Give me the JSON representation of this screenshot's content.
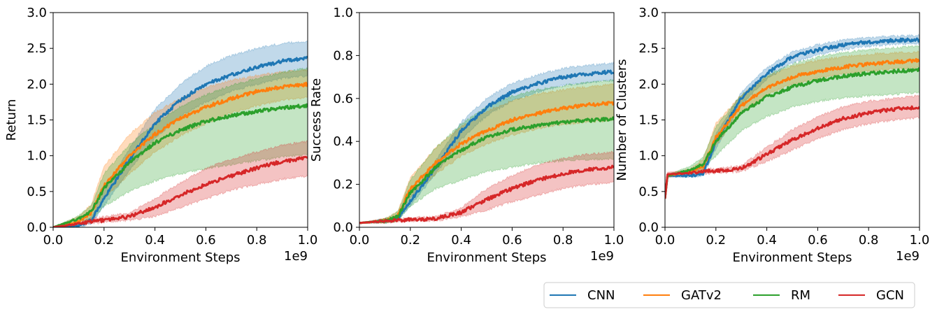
{
  "chart_data": [
    {
      "type": "line",
      "xlabel": "Environment Steps",
      "ylabel": "Return",
      "x_offset_label": "1e9",
      "xlim": [
        0,
        1.0
      ],
      "ylim": [
        0,
        3.0
      ],
      "xticks": [
        0.0,
        0.2,
        0.4,
        0.6,
        0.8,
        1.0
      ],
      "xtick_labels": [
        "0.0",
        "0.2",
        "0.4",
        "0.6",
        "0.8",
        "1.0"
      ],
      "yticks": [
        0,
        0.5,
        1.0,
        1.5,
        2.0,
        2.5,
        3.0
      ],
      "ytick_labels": [
        "0.0",
        "0.5",
        "1.0",
        "1.5",
        "2.0",
        "2.5",
        "3.0"
      ],
      "x": [
        0,
        0.1,
        0.15,
        0.2,
        0.3,
        0.4,
        0.5,
        0.6,
        0.7,
        0.8,
        0.9,
        1.0
      ],
      "series": [
        {
          "name": "CNN",
          "values": [
            0,
            0.02,
            0.1,
            0.4,
            0.95,
            1.45,
            1.78,
            2.0,
            2.13,
            2.24,
            2.32,
            2.36
          ],
          "lower": [
            0,
            0.0,
            0.05,
            0.3,
            0.8,
            1.25,
            1.55,
            1.75,
            1.9,
            2.0,
            2.08,
            2.12
          ],
          "upper": [
            0,
            0.04,
            0.15,
            0.5,
            1.1,
            1.65,
            2.0,
            2.25,
            2.4,
            2.5,
            2.57,
            2.6
          ]
        },
        {
          "name": "GATv2",
          "values": [
            0,
            0.08,
            0.2,
            0.58,
            1.0,
            1.3,
            1.52,
            1.68,
            1.8,
            1.9,
            1.96,
            2.0
          ],
          "lower": [
            0,
            0.04,
            0.1,
            0.4,
            0.75,
            1.05,
            1.28,
            1.45,
            1.6,
            1.7,
            1.78,
            1.82
          ],
          "upper": [
            0,
            0.15,
            0.32,
            0.85,
            1.3,
            1.6,
            1.8,
            1.95,
            2.05,
            2.12,
            2.17,
            2.2
          ]
        },
        {
          "name": "RM",
          "values": [
            0,
            0.12,
            0.22,
            0.55,
            0.9,
            1.18,
            1.36,
            1.48,
            1.56,
            1.62,
            1.67,
            1.7
          ],
          "lower": [
            0,
            0.08,
            0.1,
            0.3,
            0.5,
            0.65,
            0.75,
            0.82,
            0.88,
            0.93,
            0.98,
            1.02
          ],
          "upper": [
            0,
            0.16,
            0.3,
            0.75,
            1.15,
            1.45,
            1.68,
            1.85,
            1.98,
            2.08,
            2.16,
            2.22
          ]
        },
        {
          "name": "GCN",
          "values": [
            0,
            0.05,
            0.08,
            0.1,
            0.15,
            0.28,
            0.45,
            0.6,
            0.72,
            0.83,
            0.92,
            0.97
          ],
          "lower": [
            0,
            0.03,
            0.05,
            0.07,
            0.1,
            0.15,
            0.28,
            0.4,
            0.52,
            0.6,
            0.67,
            0.72
          ],
          "upper": [
            0,
            0.07,
            0.12,
            0.15,
            0.2,
            0.4,
            0.62,
            0.82,
            0.95,
            1.05,
            1.15,
            1.2
          ]
        }
      ]
    },
    {
      "type": "line",
      "xlabel": "Environment Steps",
      "ylabel": "Success Rate",
      "x_offset_label": "1e9",
      "xlim": [
        0,
        1.0
      ],
      "ylim": [
        0,
        1.0
      ],
      "xticks": [
        0.0,
        0.2,
        0.4,
        0.6,
        0.8,
        1.0
      ],
      "xtick_labels": [
        "0.0",
        "0.2",
        "0.4",
        "0.6",
        "0.8",
        "1.0"
      ],
      "yticks": [
        0,
        0.2,
        0.4,
        0.6,
        0.8,
        1.0
      ],
      "ytick_labels": [
        "0.0",
        "0.2",
        "0.4",
        "0.6",
        "0.8",
        "1.0"
      ],
      "x": [
        0,
        0.1,
        0.15,
        0.2,
        0.3,
        0.4,
        0.5,
        0.6,
        0.7,
        0.8,
        0.9,
        1.0
      ],
      "series": [
        {
          "name": "CNN",
          "values": [
            0.02,
            0.03,
            0.04,
            0.12,
            0.28,
            0.45,
            0.56,
            0.63,
            0.67,
            0.7,
            0.715,
            0.725
          ],
          "lower": [
            0.02,
            0.02,
            0.03,
            0.1,
            0.25,
            0.41,
            0.52,
            0.59,
            0.63,
            0.66,
            0.675,
            0.685
          ],
          "upper": [
            0.02,
            0.04,
            0.05,
            0.14,
            0.31,
            0.49,
            0.6,
            0.67,
            0.71,
            0.74,
            0.755,
            0.765
          ]
        },
        {
          "name": "GATv2",
          "values": [
            0.02,
            0.03,
            0.05,
            0.18,
            0.3,
            0.39,
            0.45,
            0.5,
            0.53,
            0.555,
            0.57,
            0.58
          ],
          "lower": [
            0.02,
            0.02,
            0.03,
            0.14,
            0.25,
            0.33,
            0.39,
            0.43,
            0.46,
            0.48,
            0.49,
            0.5
          ],
          "upper": [
            0.02,
            0.04,
            0.07,
            0.23,
            0.37,
            0.47,
            0.54,
            0.59,
            0.62,
            0.64,
            0.655,
            0.665
          ]
        },
        {
          "name": "RM",
          "values": [
            0.02,
            0.03,
            0.05,
            0.16,
            0.28,
            0.36,
            0.42,
            0.455,
            0.475,
            0.49,
            0.498,
            0.505
          ],
          "lower": [
            0.02,
            0.02,
            0.03,
            0.1,
            0.18,
            0.22,
            0.26,
            0.28,
            0.3,
            0.31,
            0.315,
            0.32
          ],
          "upper": [
            0.02,
            0.04,
            0.07,
            0.22,
            0.37,
            0.48,
            0.56,
            0.61,
            0.64,
            0.66,
            0.675,
            0.685
          ]
        },
        {
          "name": "GCN",
          "values": [
            0.02,
            0.03,
            0.033,
            0.035,
            0.04,
            0.07,
            0.13,
            0.18,
            0.22,
            0.25,
            0.27,
            0.28
          ],
          "lower": [
            0.02,
            0.02,
            0.025,
            0.028,
            0.03,
            0.05,
            0.08,
            0.12,
            0.15,
            0.18,
            0.2,
            0.21
          ],
          "upper": [
            0.02,
            0.04,
            0.04,
            0.043,
            0.05,
            0.09,
            0.18,
            0.24,
            0.29,
            0.32,
            0.34,
            0.35
          ]
        }
      ]
    },
    {
      "type": "line",
      "xlabel": "Environment Steps",
      "ylabel": "Number of Clusters",
      "x_offset_label": "1e9",
      "xlim": [
        0,
        1.0
      ],
      "ylim": [
        0,
        3.0
      ],
      "xticks": [
        0.0,
        0.2,
        0.4,
        0.6,
        0.8,
        1.0
      ],
      "xtick_labels": [
        "0.0",
        "0.2",
        "0.4",
        "0.6",
        "0.8",
        "1.0"
      ],
      "yticks": [
        0,
        0.5,
        1.0,
        1.5,
        2.0,
        2.5,
        3.0
      ],
      "ytick_labels": [
        "0.0",
        "0.5",
        "1.0",
        "1.5",
        "2.0",
        "2.5",
        "3.0"
      ],
      "x": [
        0,
        0.01,
        0.1,
        0.15,
        0.2,
        0.3,
        0.4,
        0.5,
        0.6,
        0.7,
        0.8,
        0.9,
        1.0
      ],
      "series": [
        {
          "name": "CNN",
          "values": [
            0.4,
            0.72,
            0.72,
            0.75,
            1.2,
            1.8,
            2.15,
            2.38,
            2.48,
            2.55,
            2.59,
            2.61,
            2.62
          ],
          "lower": [
            0.4,
            0.7,
            0.7,
            0.72,
            1.1,
            1.72,
            2.07,
            2.3,
            2.41,
            2.48,
            2.53,
            2.56,
            2.57
          ],
          "upper": [
            0.4,
            0.74,
            0.74,
            0.78,
            1.3,
            1.88,
            2.23,
            2.45,
            2.55,
            2.62,
            2.65,
            2.67,
            2.68
          ]
        },
        {
          "name": "GATv2",
          "values": [
            0.4,
            0.72,
            0.78,
            0.85,
            1.25,
            1.7,
            1.95,
            2.1,
            2.18,
            2.24,
            2.28,
            2.31,
            2.33
          ],
          "lower": [
            0.4,
            0.7,
            0.75,
            0.8,
            1.15,
            1.6,
            1.85,
            2.0,
            2.08,
            2.14,
            2.18,
            2.21,
            2.23
          ],
          "upper": [
            0.4,
            0.74,
            0.82,
            0.95,
            1.45,
            1.85,
            2.1,
            2.25,
            2.33,
            2.38,
            2.42,
            2.44,
            2.45
          ]
        },
        {
          "name": "RM",
          "values": [
            0.4,
            0.72,
            0.8,
            0.88,
            1.2,
            1.6,
            1.82,
            1.96,
            2.05,
            2.11,
            2.15,
            2.18,
            2.2
          ],
          "lower": [
            0.4,
            0.7,
            0.76,
            0.8,
            1.0,
            1.35,
            1.55,
            1.68,
            1.76,
            1.81,
            1.84,
            1.86,
            1.88
          ],
          "upper": [
            0.4,
            0.74,
            0.85,
            0.98,
            1.4,
            1.85,
            2.12,
            2.28,
            2.38,
            2.44,
            2.48,
            2.51,
            2.53
          ]
        },
        {
          "name": "GCN",
          "values": [
            0.4,
            0.74,
            0.76,
            0.78,
            0.79,
            0.82,
            1.02,
            1.22,
            1.38,
            1.52,
            1.6,
            1.65,
            1.68
          ],
          "lower": [
            0.4,
            0.7,
            0.73,
            0.75,
            0.76,
            0.78,
            0.92,
            1.08,
            1.24,
            1.37,
            1.45,
            1.5,
            1.53
          ],
          "upper": [
            0.4,
            0.77,
            0.79,
            0.81,
            0.82,
            0.86,
            1.12,
            1.36,
            1.54,
            1.68,
            1.76,
            1.8,
            1.84
          ]
        }
      ]
    }
  ],
  "legend": {
    "items": [
      {
        "label": "CNN",
        "color": "#1f77b4"
      },
      {
        "label": "GATv2",
        "color": "#ff7f0e"
      },
      {
        "label": "RM",
        "color": "#2ca02c"
      },
      {
        "label": "GCN",
        "color": "#d62728"
      }
    ]
  }
}
